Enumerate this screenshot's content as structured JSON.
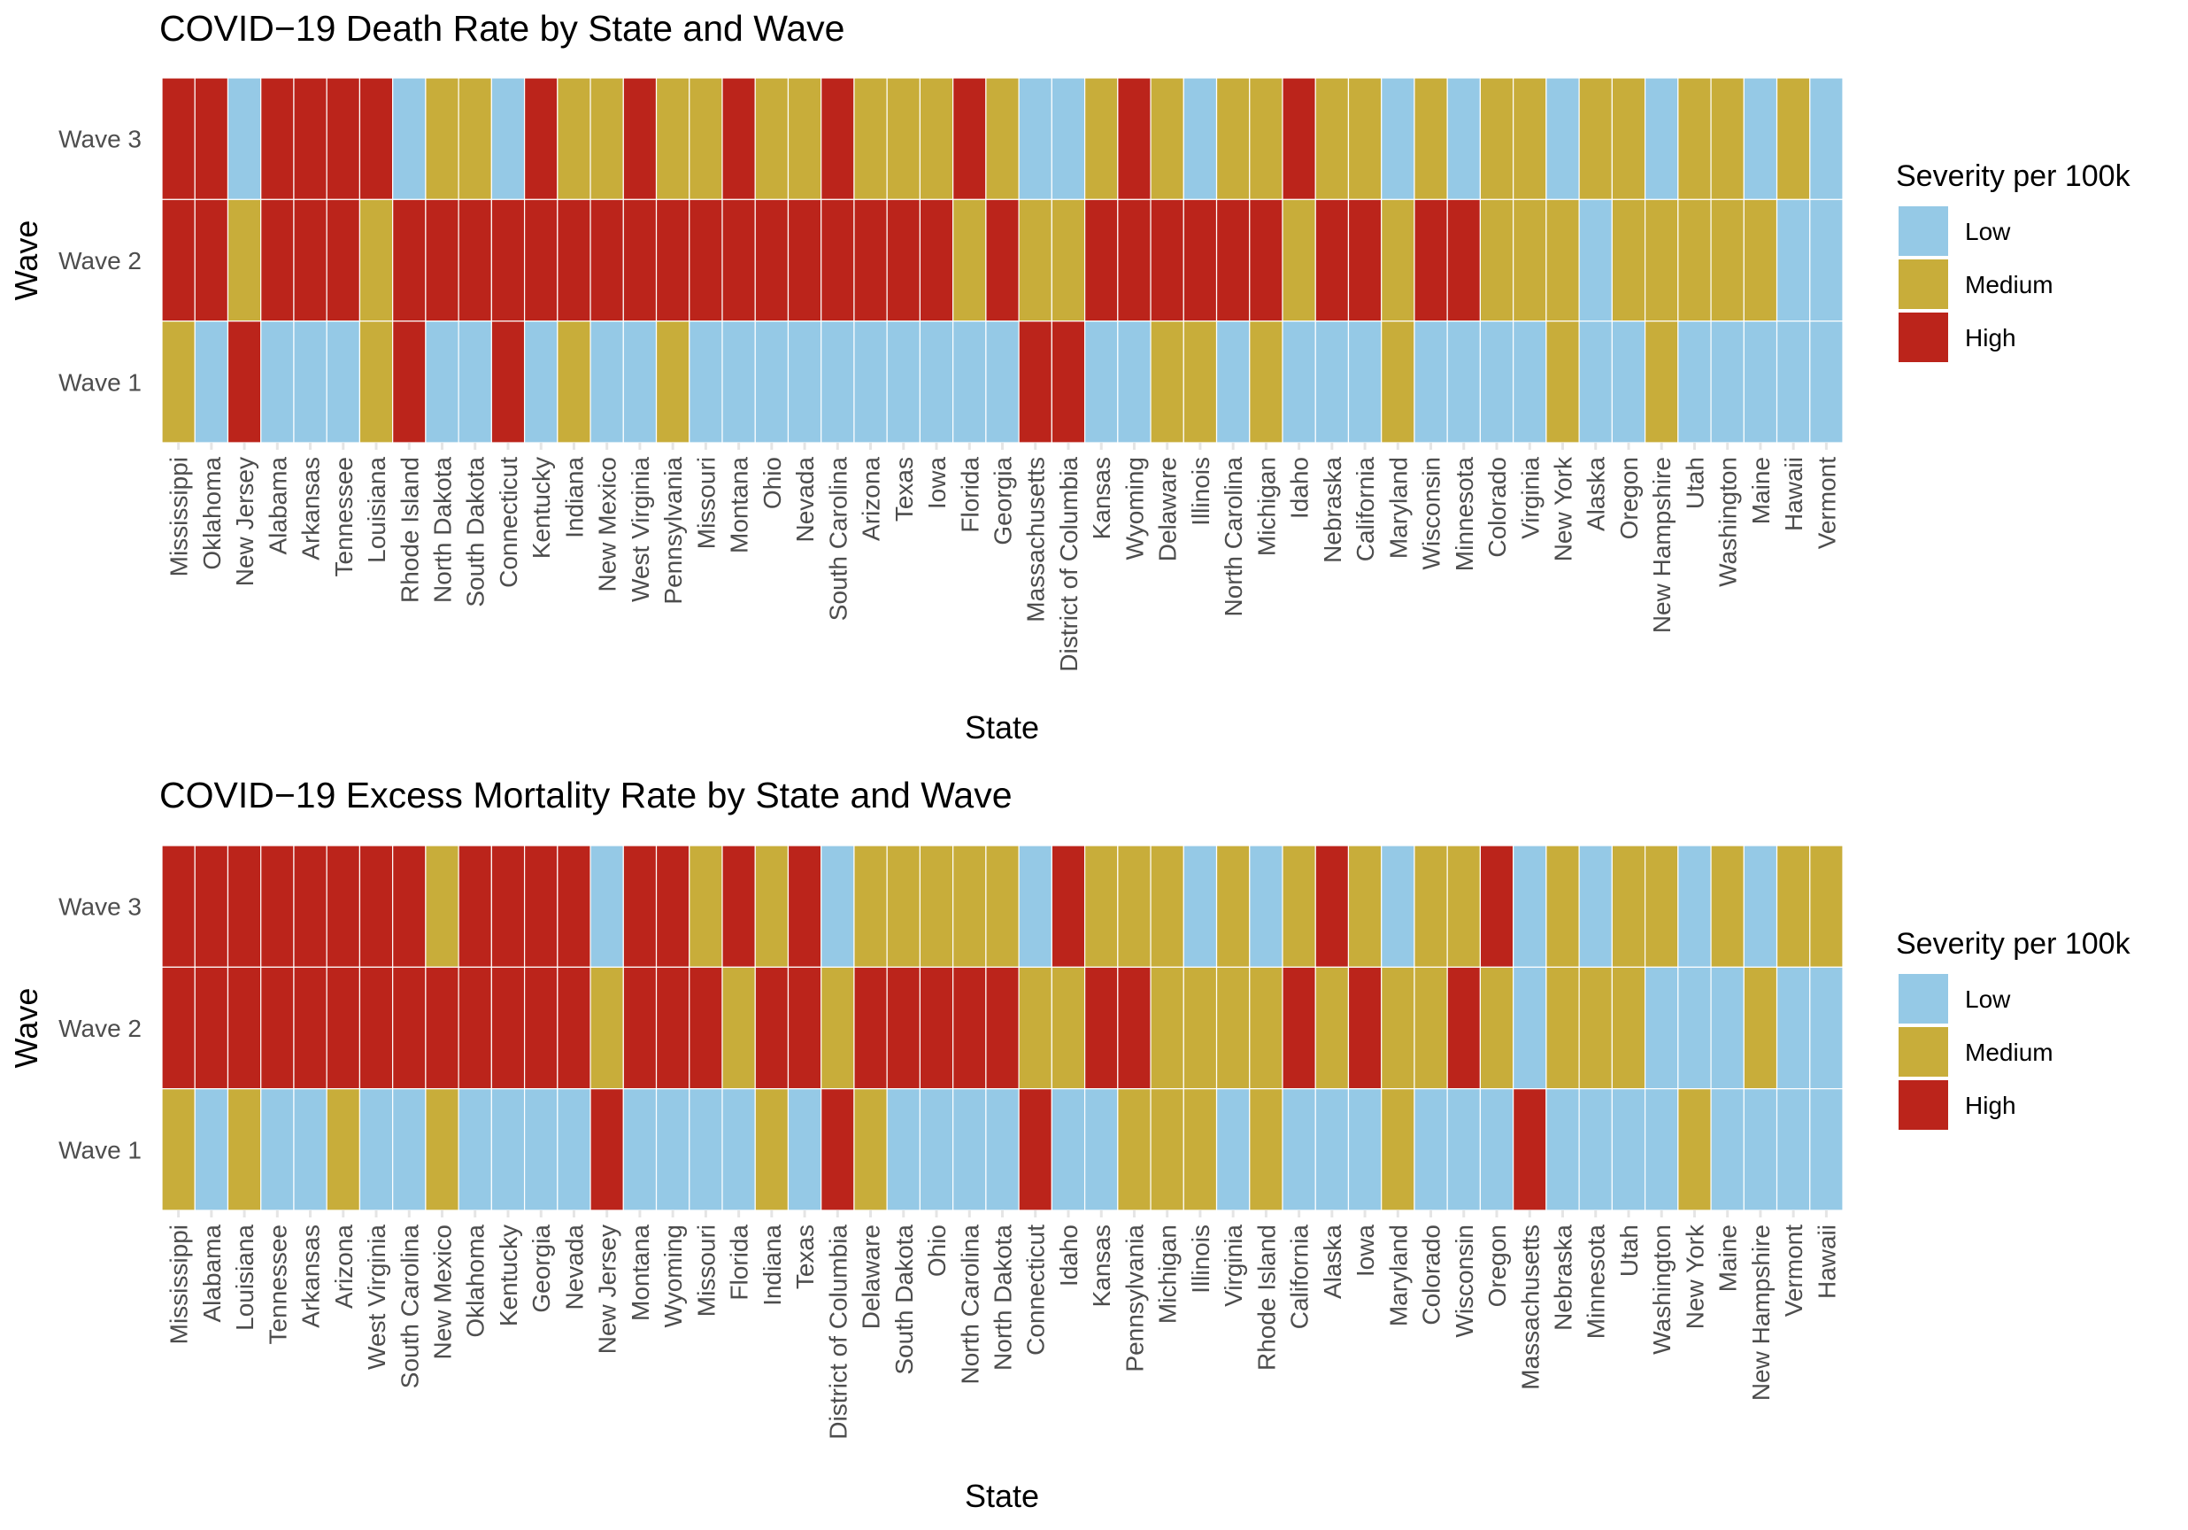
{
  "colors": {
    "Low": "#95c9e6",
    "Medium": "#c8ad3a",
    "High": "#bb241b"
  },
  "legend": {
    "title": "Severity per 100k",
    "items": [
      "Low",
      "Medium",
      "High"
    ]
  },
  "chart_data": [
    {
      "type": "heatmap",
      "title": "COVID−19 Death Rate by State and Wave",
      "xlabel": "State",
      "ylabel": "Wave",
      "legend_position": "right",
      "categories": [
        "Mississippi",
        "Oklahoma",
        "New Jersey",
        "Alabama",
        "Arkansas",
        "Tennessee",
        "Louisiana",
        "Rhode Island",
        "North Dakota",
        "South Dakota",
        "Connecticut",
        "Kentucky",
        "Indiana",
        "New Mexico",
        "West Virginia",
        "Pennsylvania",
        "Missouri",
        "Montana",
        "Ohio",
        "Nevada",
        "South Carolina",
        "Arizona",
        "Texas",
        "Iowa",
        "Florida",
        "Georgia",
        "Massachusetts",
        "District of Columbia",
        "Kansas",
        "Wyoming",
        "Delaware",
        "Illinois",
        "North Carolina",
        "Michigan",
        "Idaho",
        "Nebraska",
        "California",
        "Maryland",
        "Wisconsin",
        "Minnesota",
        "Colorado",
        "Virginia",
        "New York",
        "Alaska",
        "Oregon",
        "New Hampshire",
        "Utah",
        "Washington",
        "Maine",
        "Hawaii",
        "Vermont"
      ],
      "series": [
        {
          "name": "Wave 3",
          "values": [
            "High",
            "High",
            "Low",
            "High",
            "High",
            "High",
            "High",
            "Low",
            "Medium",
            "Medium",
            "Low",
            "High",
            "Medium",
            "Medium",
            "High",
            "Medium",
            "Medium",
            "High",
            "Medium",
            "Medium",
            "High",
            "Medium",
            "Medium",
            "Medium",
            "High",
            "Medium",
            "Low",
            "Low",
            "Medium",
            "High",
            "Medium",
            "Low",
            "Medium",
            "Medium",
            "High",
            "Medium",
            "Medium",
            "Low",
            "Medium",
            "Low",
            "Medium",
            "Medium",
            "Low",
            "Medium",
            "Medium",
            "Low",
            "Medium",
            "Medium",
            "Low",
            "Medium",
            "Low"
          ]
        },
        {
          "name": "Wave 2",
          "values": [
            "High",
            "High",
            "Medium",
            "High",
            "High",
            "High",
            "Medium",
            "High",
            "High",
            "High",
            "High",
            "High",
            "High",
            "High",
            "High",
            "High",
            "High",
            "High",
            "High",
            "High",
            "High",
            "High",
            "High",
            "High",
            "Medium",
            "High",
            "Medium",
            "Medium",
            "High",
            "High",
            "High",
            "High",
            "High",
            "High",
            "Medium",
            "High",
            "High",
            "Medium",
            "High",
            "High",
            "Medium",
            "Medium",
            "Medium",
            "Low",
            "Medium",
            "Medium",
            "Medium",
            "Medium",
            "Medium",
            "Low",
            "Low"
          ]
        },
        {
          "name": "Wave 1",
          "values": [
            "Medium",
            "Low",
            "High",
            "Low",
            "Low",
            "Low",
            "Medium",
            "High",
            "Low",
            "Low",
            "High",
            "Low",
            "Medium",
            "Low",
            "Low",
            "Medium",
            "Low",
            "Low",
            "Low",
            "Low",
            "Low",
            "Low",
            "Low",
            "Low",
            "Low",
            "Low",
            "High",
            "High",
            "Low",
            "Low",
            "Medium",
            "Medium",
            "Low",
            "Medium",
            "Low",
            "Low",
            "Low",
            "Medium",
            "Low",
            "Low",
            "Low",
            "Low",
            "Medium",
            "Low",
            "Low",
            "Medium",
            "Low",
            "Low",
            "Low",
            "Low",
            "Low"
          ]
        }
      ]
    },
    {
      "type": "heatmap",
      "title": "COVID−19 Excess Mortality Rate by State and Wave",
      "xlabel": "State",
      "ylabel": "Wave",
      "legend_position": "right",
      "categories": [
        "Mississippi",
        "Alabama",
        "Louisiana",
        "Tennessee",
        "Arkansas",
        "Arizona",
        "West Virginia",
        "South Carolina",
        "New Mexico",
        "Oklahoma",
        "Kentucky",
        "Georgia",
        "Nevada",
        "New Jersey",
        "Montana",
        "Wyoming",
        "Missouri",
        "Florida",
        "Indiana",
        "Texas",
        "District of Columbia",
        "Delaware",
        "South Dakota",
        "Ohio",
        "North Carolina",
        "North Dakota",
        "Connecticut",
        "Idaho",
        "Kansas",
        "Pennsylvania",
        "Michigan",
        "Illinois",
        "Virginia",
        "Rhode Island",
        "California",
        "Alaska",
        "Iowa",
        "Maryland",
        "Colorado",
        "Wisconsin",
        "Oregon",
        "Massachusetts",
        "Nebraska",
        "Minnesota",
        "Utah",
        "Washington",
        "New York",
        "Maine",
        "New Hampshire",
        "Vermont",
        "Hawaii"
      ],
      "series": [
        {
          "name": "Wave 3",
          "values": [
            "High",
            "High",
            "High",
            "High",
            "High",
            "High",
            "High",
            "High",
            "Medium",
            "High",
            "High",
            "High",
            "High",
            "Low",
            "High",
            "High",
            "Medium",
            "High",
            "Medium",
            "High",
            "Low",
            "Medium",
            "Medium",
            "Medium",
            "Medium",
            "Medium",
            "Low",
            "High",
            "Medium",
            "Medium",
            "Medium",
            "Low",
            "Medium",
            "Low",
            "Medium",
            "High",
            "Medium",
            "Low",
            "Medium",
            "Medium",
            "High",
            "Low",
            "Medium",
            "Low",
            "Medium",
            "Medium",
            "Low",
            "Medium",
            "Low",
            "Medium",
            "Medium"
          ]
        },
        {
          "name": "Wave 2",
          "values": [
            "High",
            "High",
            "High",
            "High",
            "High",
            "High",
            "High",
            "High",
            "High",
            "High",
            "High",
            "High",
            "High",
            "Medium",
            "High",
            "High",
            "High",
            "Medium",
            "High",
            "High",
            "Medium",
            "High",
            "High",
            "High",
            "High",
            "High",
            "Medium",
            "Medium",
            "High",
            "High",
            "Medium",
            "Medium",
            "Medium",
            "Medium",
            "High",
            "Medium",
            "High",
            "Medium",
            "Medium",
            "High",
            "Medium",
            "Low",
            "Medium",
            "Medium",
            "Medium",
            "Low",
            "Low",
            "Low",
            "Medium",
            "Low",
            "Low"
          ]
        },
        {
          "name": "Wave 1",
          "values": [
            "Medium",
            "Low",
            "Medium",
            "Low",
            "Low",
            "Medium",
            "Low",
            "Low",
            "Medium",
            "Low",
            "Low",
            "Low",
            "Low",
            "High",
            "Low",
            "Low",
            "Low",
            "Low",
            "Medium",
            "Low",
            "High",
            "Medium",
            "Low",
            "Low",
            "Low",
            "Low",
            "High",
            "Low",
            "Low",
            "Medium",
            "Medium",
            "Medium",
            "Low",
            "Medium",
            "Low",
            "Low",
            "Low",
            "Medium",
            "Low",
            "Low",
            "Low",
            "High",
            "Low",
            "Low",
            "Low",
            "Low",
            "Medium",
            "Low",
            "Low",
            "Low",
            "Low"
          ]
        }
      ]
    }
  ]
}
